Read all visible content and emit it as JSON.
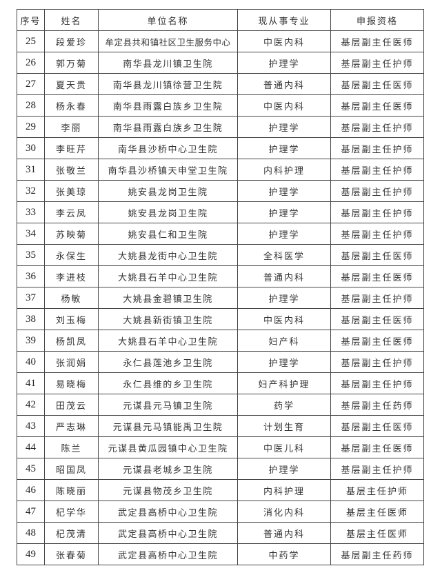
{
  "table": {
    "headers": [
      "序号",
      "姓名",
      "单位名称",
      "现从事专业",
      "申报资格"
    ],
    "rows": [
      [
        "25",
        "段爱珍",
        "牟定县共和镇社区卫生服务中心",
        "中医内科",
        "基层副主任医师"
      ],
      [
        "26",
        "郭万菊",
        "南华县龙川镇卫生院",
        "护理学",
        "基层副主任护师"
      ],
      [
        "27",
        "夏天贵",
        "南华县龙川镇徐营卫生院",
        "普通内科",
        "基层副主任医师"
      ],
      [
        "28",
        "杨永春",
        "南华县雨露白族乡卫生院",
        "中医内科",
        "基层副主任医师"
      ],
      [
        "29",
        "李丽",
        "南华县雨露白族乡卫生院",
        "护理学",
        "基层副主任护师"
      ],
      [
        "30",
        "李旺芹",
        "南华县沙桥中心卫生院",
        "护理学",
        "基层副主任护师"
      ],
      [
        "31",
        "张敬兰",
        "南华县沙桥镇天申堂卫生院",
        "内科护理",
        "基层副主任护师"
      ],
      [
        "32",
        "张美琼",
        "姚安县龙岗卫生院",
        "护理学",
        "基层副主任护师"
      ],
      [
        "33",
        "李云凤",
        "姚安县龙岗卫生院",
        "护理学",
        "基层副主任护师"
      ],
      [
        "34",
        "苏映菊",
        "姚安县仁和卫生院",
        "护理学",
        "基层副主任护师"
      ],
      [
        "35",
        "永保生",
        "大姚县龙街中心卫生院",
        "全科医学",
        "基层副主任医师"
      ],
      [
        "36",
        "李进枝",
        "大姚县石羊中心卫生院",
        "普通内科",
        "基层副主任医师"
      ],
      [
        "37",
        "杨敏",
        "大姚县金碧镇卫生院",
        "护理学",
        "基层副主任护师"
      ],
      [
        "38",
        "刘玉梅",
        "大姚县新街镇卫生院",
        "中医内科",
        "基层副主任医师"
      ],
      [
        "39",
        "杨凯凤",
        "大姚县石羊中心卫生院",
        "妇产科",
        "基层副主任医师"
      ],
      [
        "40",
        "张润娟",
        "永仁县莲池乡卫生院",
        "护理学",
        "基层副主任护师"
      ],
      [
        "41",
        "易晓梅",
        "永仁县维的乡卫生院",
        "妇产科护理",
        "基层副主任护师"
      ],
      [
        "42",
        "田茂云",
        "元谋县元马镇卫生院",
        "药学",
        "基层副主任药师"
      ],
      [
        "43",
        "严志琳",
        "元谋县元马镇能禹卫生院",
        "计划生育",
        "基层副主任医师"
      ],
      [
        "44",
        "陈兰",
        "元谋县黄瓜园镇中心卫生院",
        "中医儿科",
        "基层副主任医师"
      ],
      [
        "45",
        "昭国凤",
        "元谋县老城乡卫生院",
        "护理学",
        "基层副主任护师"
      ],
      [
        "46",
        "陈晓丽",
        "元谋县物茂乡卫生院",
        "内科护理",
        "基层主任护师"
      ],
      [
        "47",
        "杞学华",
        "武定县高桥中心卫生院",
        "消化内科",
        "基层主任医师"
      ],
      [
        "48",
        "杞茂清",
        "武定县高桥中心卫生院",
        "普通内科",
        "基层主任医师"
      ],
      [
        "49",
        "张春菊",
        "武定县高桥中心卫生院",
        "中药学",
        "基层副主任药师"
      ]
    ]
  }
}
